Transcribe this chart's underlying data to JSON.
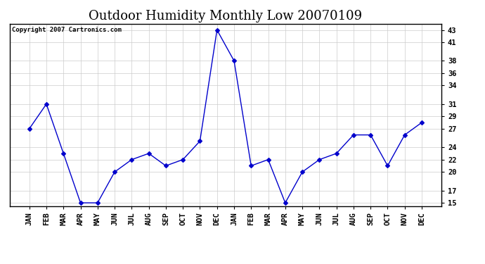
{
  "title": "Outdoor Humidity Monthly Low 20070109",
  "copyright_text": "Copyright 2007 Cartronics.com",
  "labels": [
    "JAN",
    "FEB",
    "MAR",
    "APR",
    "MAY",
    "JUN",
    "JUL",
    "AUG",
    "SEP",
    "OCT",
    "NOV",
    "DEC",
    "JAN",
    "FEB",
    "MAR",
    "APR",
    "MAY",
    "JUN",
    "JUL",
    "AUG",
    "SEP",
    "OCT",
    "NOV",
    "DEC"
  ],
  "values": [
    27,
    31,
    23,
    15,
    15,
    20,
    22,
    23,
    21,
    22,
    25,
    43,
    38,
    21,
    22,
    15,
    20,
    22,
    23,
    26,
    26,
    21,
    26,
    28
  ],
  "ylim": [
    14.5,
    44.0
  ],
  "yticks": [
    43,
    41,
    38,
    36,
    34,
    31,
    29,
    27,
    24,
    22,
    20,
    17,
    15
  ],
  "line_color": "#0000cc",
  "marker": "D",
  "marker_size": 3,
  "bg_color": "#ffffff",
  "grid_color": "#cccccc",
  "title_fontsize": 13,
  "axis_label_fontsize": 7.5,
  "copyright_fontsize": 6.5
}
